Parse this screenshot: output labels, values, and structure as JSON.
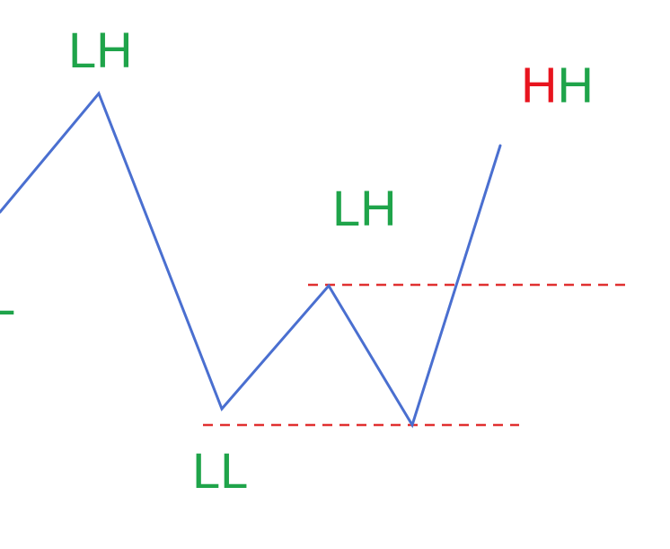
{
  "colors": {
    "background": "#ffffff",
    "price_line": "#4a6fd0",
    "level_line": "#e03030",
    "label_green": "#1fa44a",
    "label_red": "#e8141e"
  },
  "labels": {
    "left_low": "L",
    "lower_high_1": "LH",
    "lower_low": "LL",
    "lower_high_2": "LH",
    "higher_high_first": "H",
    "higher_high_second": "H"
  }
}
